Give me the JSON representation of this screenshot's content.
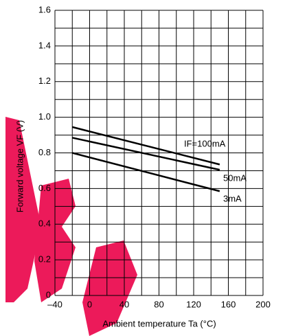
{
  "chart_data": {
    "type": "line",
    "ylabel": "Forward voltage  VF  (V)",
    "xlabel": "Ambient temperature   Ta   (°C)",
    "x": [
      -20,
      150
    ],
    "series": [
      {
        "name": "IF=100mA",
        "color": "#000000",
        "values": [
          0.945,
          0.735
        ]
      },
      {
        "name": "50mA",
        "color": "#000000",
        "values": [
          0.885,
          0.705
        ]
      },
      {
        "name": "3mA",
        "color": "#000000",
        "values": [
          0.8,
          0.585
        ]
      }
    ],
    "xlim": [
      -40,
      200
    ],
    "xticks": [
      {
        "value": -40,
        "label": "–40"
      },
      0,
      40,
      80,
      120,
      160,
      200
    ],
    "xminor": [
      -20,
      20,
      60,
      100,
      140,
      180
    ],
    "ylim": [
      0,
      1.6
    ],
    "yticks": [
      0,
      0.2,
      0.4,
      0.6,
      0.8,
      {
        "value": 1,
        "label": "1.0"
      },
      1.2,
      1.4,
      1.6
    ],
    "yminor": [
      0.1,
      0.3,
      0.5,
      0.7,
      0.9,
      1.1,
      1.3,
      1.5
    ],
    "grid": true
  }
}
